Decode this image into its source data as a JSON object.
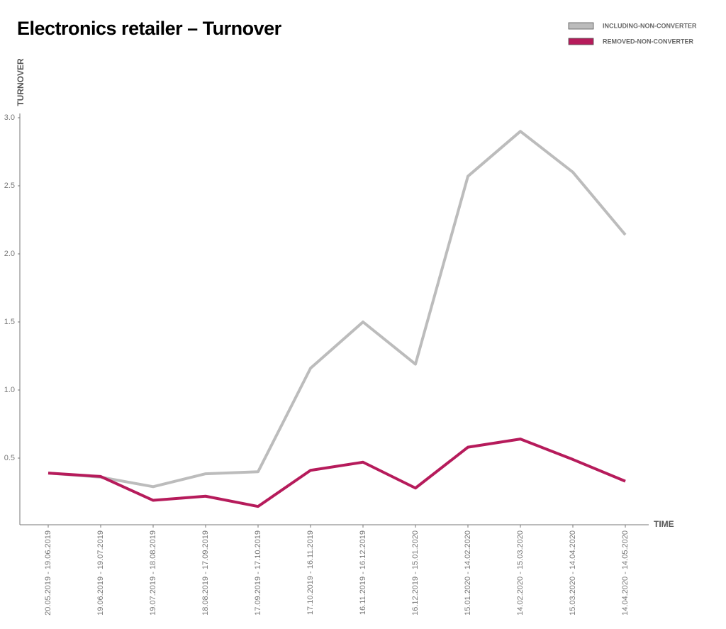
{
  "chart_data": {
    "type": "line",
    "title": "Electronics retailer – Turnover",
    "y_label": "TURNOVER",
    "x_label": "TIME",
    "categories": [
      "20.05.2019 - 19.06.2019",
      "19.06.2019 - 19.07.2019",
      "19.07.2019 - 18.08.2019",
      "18.08.2019 - 17.09.2019",
      "17.09.2019 - 17.10.2019",
      "17.10.2019 - 16.11.2019",
      "16.11.2019 - 16.12.2019",
      "16.12.2019 - 15.01.2020",
      "15.01.2020 - 14.02.2020",
      "14.02.2020 - 15.03.2020",
      "15.03.2020 - 14.04.2020",
      "14.04.2020 - 14.05.2020"
    ],
    "series": [
      {
        "name": "INCLUDING-NON-CONVERTER",
        "color": "#bcbcbc",
        "values": [
          0.39,
          0.36,
          0.29,
          0.385,
          0.4,
          1.16,
          1.5,
          1.19,
          2.57,
          2.9,
          2.6,
          2.14
        ]
      },
      {
        "name": "REMOVED-NON-CONVERTER",
        "color": "#b61b5b",
        "values": [
          0.39,
          0.365,
          0.19,
          0.22,
          0.145,
          0.41,
          0.47,
          0.28,
          0.58,
          0.64,
          0.49,
          0.33
        ]
      }
    ],
    "ylim": [
      0,
      3.0
    ],
    "yticks": [
      0.5,
      {
        "value": 1,
        "label": "1.0"
      },
      1.5,
      {
        "value": 2,
        "label": "2.0"
      },
      2.5,
      {
        "value": 3,
        "label": "3.0"
      }
    ],
    "legend": "top-right",
    "grid": false
  }
}
